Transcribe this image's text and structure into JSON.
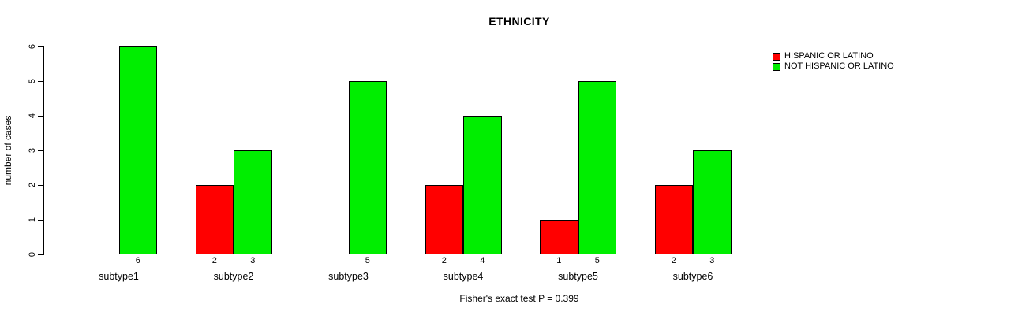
{
  "chart_data": {
    "type": "bar",
    "title": "ETHNICITY",
    "xlabel": "",
    "ylabel": "number of cases",
    "ylim": [
      0,
      6
    ],
    "yticks": [
      0,
      1,
      2,
      3,
      4,
      5,
      6
    ],
    "grid": false,
    "legend_position": "top-right",
    "bar_value_labels": "counts shown below x-axis under each bar; omitted when value is 0",
    "categories": [
      "subtype1",
      "subtype2",
      "subtype3",
      "subtype4",
      "subtype5",
      "subtype6"
    ],
    "series": [
      {
        "name": "HISPANIC OR LATINO",
        "color": "#ff0000",
        "values": [
          0,
          2,
          0,
          2,
          1,
          2
        ]
      },
      {
        "name": "NOT HISPANIC OR LATINO",
        "color": "#00ee00",
        "values": [
          6,
          3,
          5,
          4,
          5,
          3
        ]
      }
    ],
    "annotation": "Fisher's exact test P = 0.399"
  },
  "colors": {
    "background": "#ffffff",
    "axis": "#000000",
    "bar_border": "#000000",
    "text": "#000000"
  }
}
